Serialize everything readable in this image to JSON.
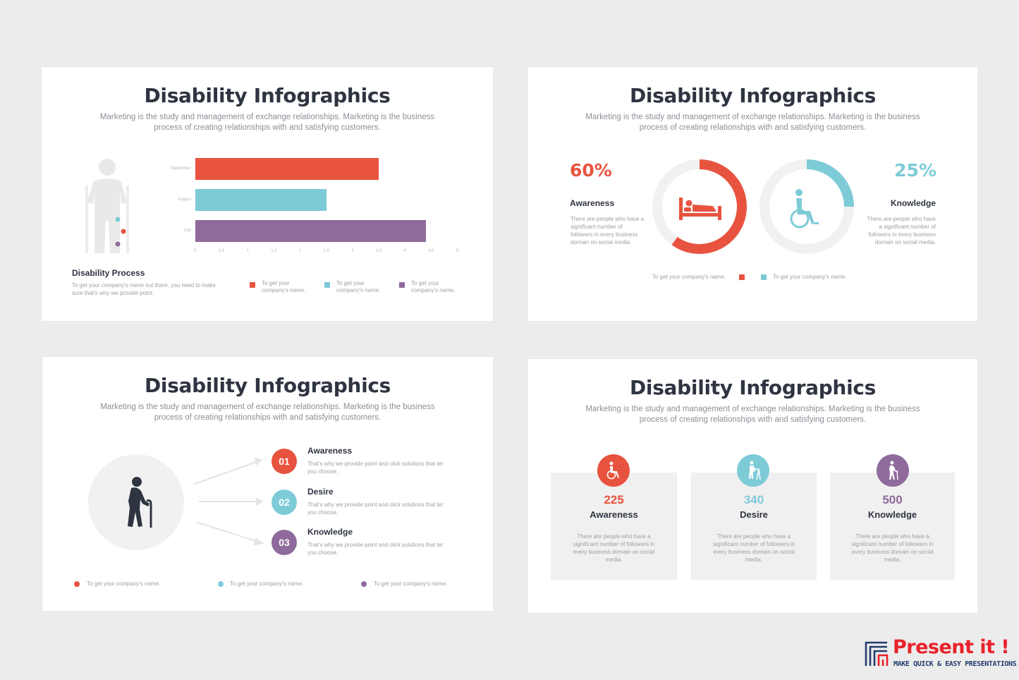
{
  "slides": [
    {
      "title": "Disability Infographics",
      "subtitle": "Marketing is the study and management of exchange relationships. Marketing is the business process of creating relationships with and satisfying customers.",
      "process_title": "Disability Process",
      "process_text": "To get your company's name out there, you need to make sure that's why we provide point.",
      "legend": [
        "To get your company's name.",
        "To get your company's name.",
        "To get your company's name."
      ]
    },
    {
      "title": "Disability Infographics",
      "subtitle": "Marketing is the study and management of exchange relationships. Marketing is the business process of creating relationships with and satisfying customers.",
      "left": {
        "percent": "60%",
        "label": "Awareness",
        "text": "There are people who have a significant number of followers in every business domain on social media."
      },
      "right": {
        "percent": "25%",
        "label": "Knowledge",
        "text": "There are people who have a significant number of followers in every business domain on social media."
      },
      "legend": [
        "To get your company's name.",
        "To get your company's name."
      ]
    },
    {
      "title": "Disability Infographics",
      "subtitle": "Marketing is the study and management of exchange relationships. Marketing is the business process of creating relationships with and satisfying customers.",
      "items": [
        {
          "num": "01",
          "label": "Awareness",
          "text": "That's why we provide point and click solutions that let you choose."
        },
        {
          "num": "02",
          "label": "Desire",
          "text": "That's why we provide point and click solutions that let you choose."
        },
        {
          "num": "03",
          "label": "Knowledge",
          "text": "That's why we provide point and click solutions that let you choose."
        }
      ],
      "legend": [
        "To get your company's name.",
        "To get your company's name.",
        "To get your company's name."
      ]
    },
    {
      "title": "Disability Infographics",
      "subtitle": "Marketing is the study and management of exchange relationships. Marketing is the business process of creating relationships with and satisfying customers.",
      "cards": [
        {
          "value": "225",
          "label": "Awareness",
          "text": "There are people who have a significant number of followers in every business domain on social media."
        },
        {
          "value": "340",
          "label": "Desire",
          "text": "There are people who have a significant number of followers in every business domain on social media."
        },
        {
          "value": "500",
          "label": "Knowledge",
          "text": "There are people who have a significant number of followers in every business domain on social media."
        }
      ]
    }
  ],
  "chart_data": [
    {
      "type": "bar",
      "orientation": "horizontal",
      "categories": [
        "September",
        "August",
        "July"
      ],
      "values": [
        3.5,
        2.5,
        4.4
      ],
      "xticks": [
        "0",
        "0.5",
        "1",
        "1.5",
        "2",
        "2.5",
        "3",
        "3.5",
        "4",
        "4.5",
        "5"
      ],
      "xlim": [
        0,
        5
      ],
      "colors": [
        "#e8533f",
        "#7ecbd8",
        "#8f6a9c"
      ]
    },
    {
      "type": "pie",
      "values": [
        60,
        25
      ],
      "labels": [
        "60%",
        "25%"
      ],
      "colors": [
        "#e8533f",
        "#7ecbd8"
      ]
    }
  ],
  "colors": {
    "red": "#e8533f",
    "teal": "#7ecbd8",
    "purple": "#8f6a9c",
    "dark": "#2f3441"
  },
  "icons": [
    "person-on-crutches-icon",
    "person-in-bed-icon",
    "wheelchair-icon",
    "elderly-with-cane-icon",
    "walker-icon"
  ],
  "brand": {
    "name": "Present it !",
    "tagline": "MAKE QUICK & EASY PRESENTATIONS"
  }
}
